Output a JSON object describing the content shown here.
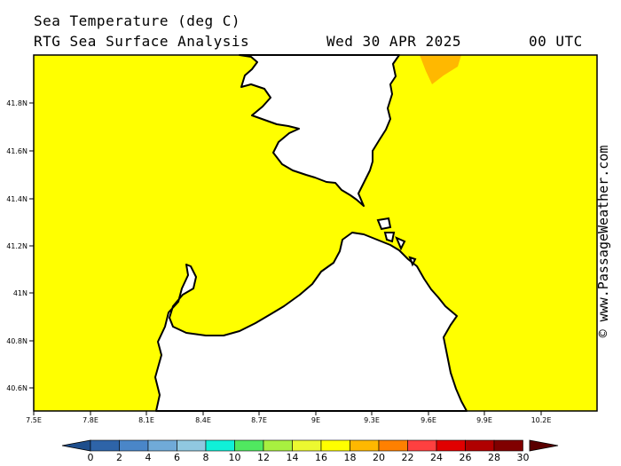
{
  "header": {
    "title": "Sea Temperature (deg C)",
    "subtitle": "RTG Sea Surface Analysis",
    "date": "Wed 30 APR 2025",
    "time": "00 UTC"
  },
  "credit": "© www.PassageWeather.com",
  "map": {
    "lat_labels": [
      "41.8N",
      "41.6N",
      "41.4N",
      "41.2N",
      "41N",
      "40.8N",
      "40.6N"
    ],
    "lon_labels": [
      "7.5E",
      "7.8E",
      "8.1E",
      "8.4E",
      "8.7E",
      "9E",
      "9.3E",
      "9.6E",
      "9.9E",
      "10.2E"
    ],
    "sea_color": "#ffff00",
    "warm_patch_color": "#ffb800",
    "land_color": "#ffffff"
  },
  "colorbar": {
    "labels": [
      "0",
      "2",
      "4",
      "6",
      "8",
      "10",
      "12",
      "14",
      "16",
      "18",
      "20",
      "22",
      "24",
      "26",
      "28",
      "30"
    ],
    "colors": [
      "#1e4e8c",
      "#2e64a8",
      "#4a86c8",
      "#70aad8",
      "#90c8e0",
      "#10f0d8",
      "#50e860",
      "#a8f040",
      "#ecf830",
      "#ffff00",
      "#ffb800",
      "#ff8000",
      "#ff4040",
      "#e00000",
      "#b00000",
      "#800000",
      "#5a0000"
    ]
  }
}
